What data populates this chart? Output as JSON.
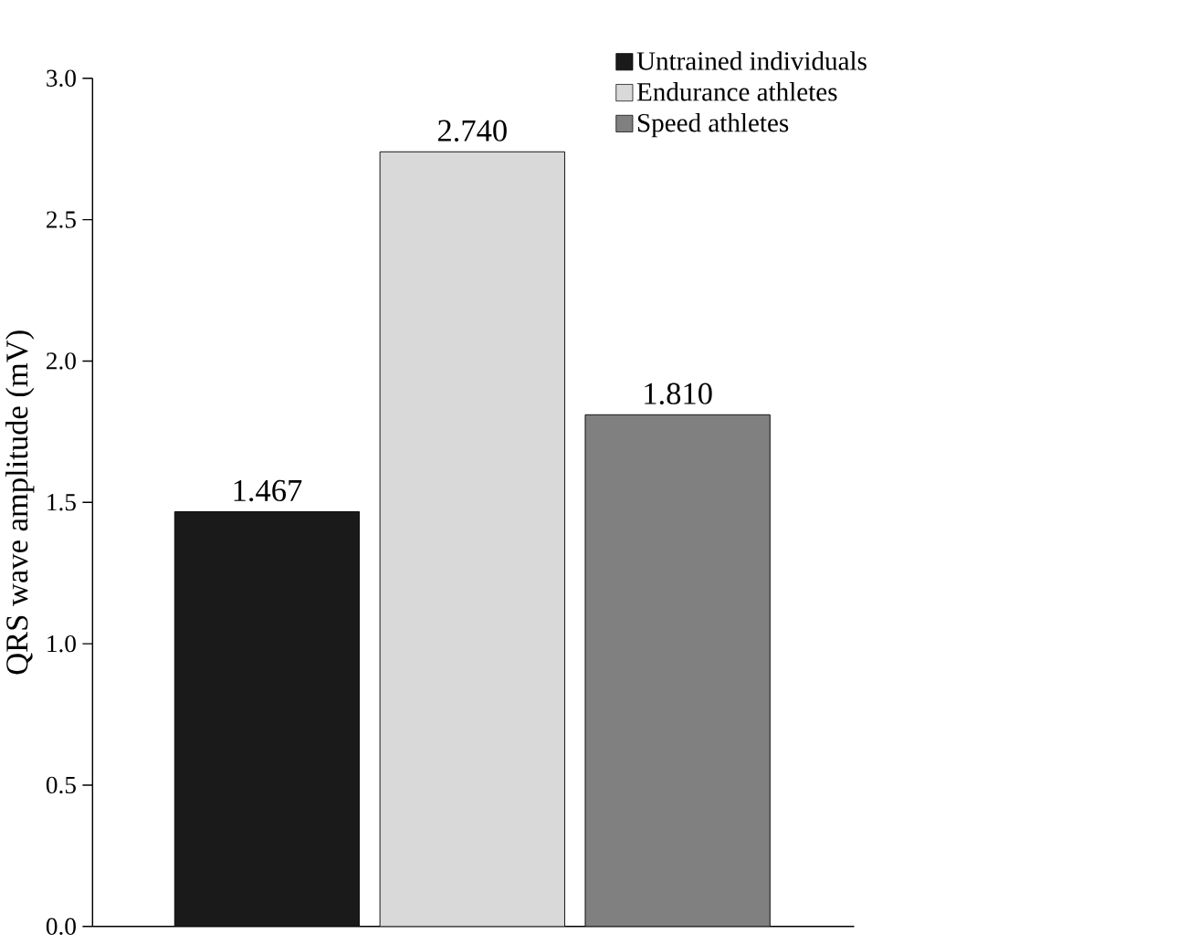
{
  "chart_data": {
    "type": "bar",
    "ylabel": "QRS wave amplitude (mV)",
    "categories": [
      null,
      null,
      null
    ],
    "series": [
      {
        "name": "Untrained individuals",
        "color": "#1a1a1a",
        "values": [
          1.467,
          null,
          null
        ],
        "value_labels": [
          "1.467",
          null,
          null
        ]
      },
      {
        "name": "Endurance athletes",
        "color": "#d9d9d9",
        "values": [
          null,
          2.74,
          null
        ],
        "value_labels": [
          null,
          "2.740",
          null
        ]
      },
      {
        "name": "Speed athletes",
        "color": "#808080",
        "values": [
          null,
          null,
          1.81
        ],
        "value_labels": [
          null,
          null,
          "1.810"
        ]
      }
    ],
    "ylim": [
      0,
      3
    ],
    "yticks": [
      {
        "value": 0,
        "label": "0.0"
      },
      {
        "value": 0.5,
        "label": "0.5"
      },
      {
        "value": 1,
        "label": "1.0"
      },
      {
        "value": 1.5,
        "label": "1.5"
      },
      {
        "value": 2,
        "label": "2.0"
      },
      {
        "value": 2.5,
        "label": "2.5"
      },
      {
        "value": 3,
        "label": "3.0"
      }
    ],
    "legend": "top right",
    "grid": false
  }
}
